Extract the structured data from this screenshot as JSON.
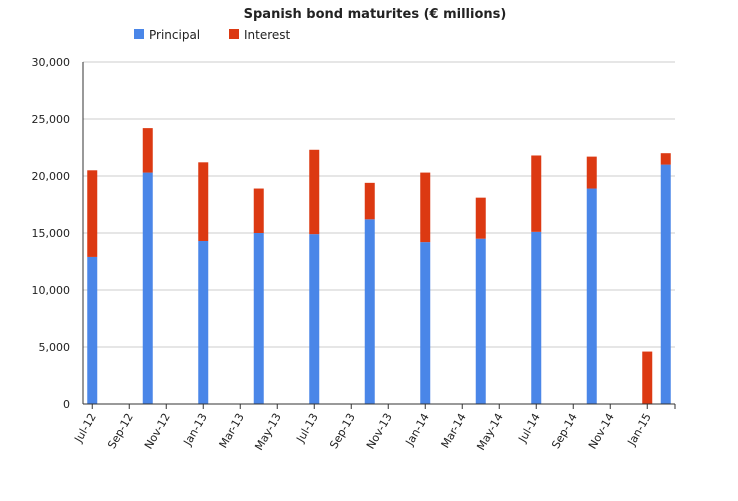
{
  "chart_data": {
    "type": "bar",
    "stacked": true,
    "title": "Spanish bond maturites (€ millions)",
    "xlabel": "",
    "ylabel": "",
    "ylim": [
      0,
      30000
    ],
    "yticks": [
      "0",
      "5,000",
      "10,000",
      "15,000",
      "20,000",
      "25,000",
      "30,000"
    ],
    "ytick_values": [
      0,
      5000,
      10000,
      15000,
      20000,
      25000,
      30000
    ],
    "legend_position": "top-left",
    "grid": true,
    "categories": [
      "Jul-12",
      "Aug-12",
      "Sep-12",
      "Oct-12",
      "Nov-12",
      "Dec-12",
      "Jan-13",
      "Feb-13",
      "Mar-13",
      "Apr-13",
      "May-13",
      "Jun-13",
      "Jul-13",
      "Aug-13",
      "Sep-13",
      "Oct-13",
      "Nov-13",
      "Dec-13",
      "Jan-14",
      "Feb-14",
      "Mar-14",
      "Apr-14",
      "May-14",
      "Jun-14",
      "Jul-14",
      "Aug-14",
      "Sep-14",
      "Oct-14",
      "Nov-14",
      "Dec-14",
      "Jan-15",
      "Feb-15"
    ],
    "tick_labels": [
      "Jul-12",
      "Sep-12",
      "Nov-12",
      "Jan-13",
      "Mar-13",
      "May-13",
      "Jul-13",
      "Sep-13",
      "Nov-13",
      "Jan-14",
      "Mar-14",
      "May-14",
      "Jul-14",
      "Sep-14",
      "Nov-14",
      "Jan-15"
    ],
    "series": [
      {
        "name": "Principal",
        "color": "#4a86e8",
        "values": [
          12900,
          0,
          0,
          20300,
          0,
          0,
          14300,
          0,
          0,
          15000,
          0,
          0,
          14900,
          0,
          0,
          16200,
          0,
          0,
          14200,
          0,
          0,
          14500,
          0,
          0,
          15100,
          0,
          0,
          18900,
          0,
          0,
          0,
          21000
        ]
      },
      {
        "name": "Interest",
        "color": "#dc3912",
        "values": [
          7600,
          0,
          0,
          3900,
          0,
          0,
          6900,
          0,
          0,
          3900,
          0,
          0,
          7400,
          0,
          0,
          3200,
          0,
          0,
          6100,
          0,
          0,
          3600,
          0,
          0,
          6700,
          0,
          0,
          2800,
          0,
          0,
          4600,
          1000
        ]
      }
    ]
  },
  "colors": {
    "principal": "#4a86e8",
    "interest": "#dc3912",
    "grid": "#cccccc",
    "axis": "#333333"
  }
}
